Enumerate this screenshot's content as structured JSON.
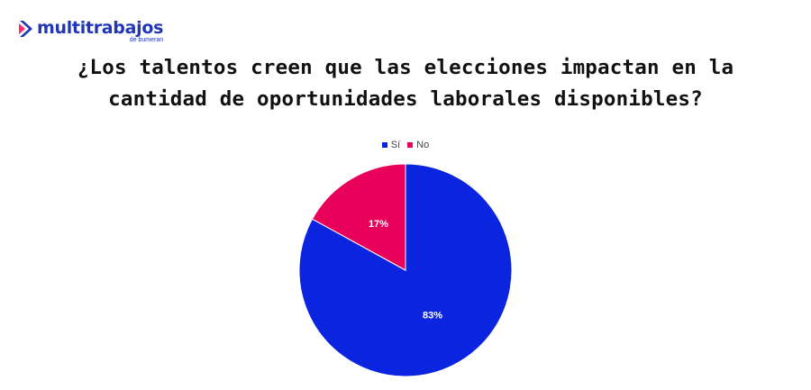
{
  "logo": {
    "name": "multitrabajos",
    "sub": "de bumeran",
    "color": "#2237b8",
    "accent": "#ff2a6d"
  },
  "chart_data": {
    "type": "pie",
    "title_lines": [
      "¿Los talentos creen que las elecciones impactan en la",
      "cantidad de oportunidades laborales disponibles?"
    ],
    "categories": [
      "Sí",
      "No"
    ],
    "values": [
      83,
      17
    ],
    "labels": [
      "83%",
      "17%"
    ],
    "colors": [
      "#0b24e0",
      "#e8005a"
    ],
    "legend_position": "top"
  }
}
